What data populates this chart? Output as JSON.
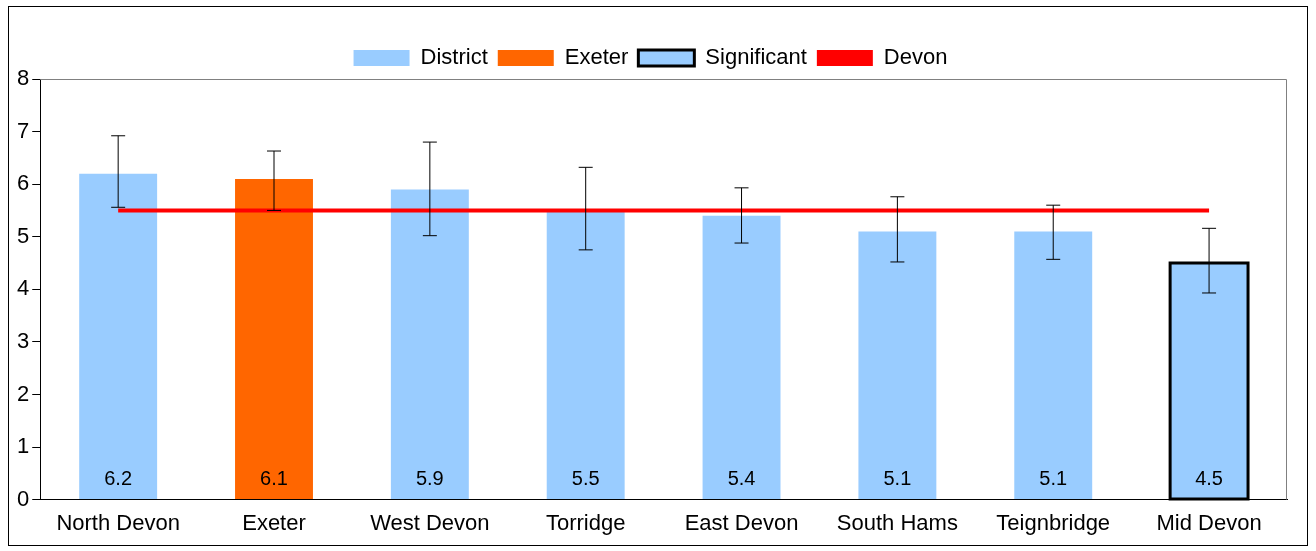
{
  "chart_data": {
    "type": "bar",
    "categories": [
      "North Devon",
      "Exeter",
      "West Devon",
      "Torridge",
      "East Devon",
      "South Hams",
      "Teignbridge",
      "Mid Devon"
    ],
    "series": [
      {
        "name": "District",
        "color": "#99ccff",
        "values": [
          6.2,
          null,
          5.9,
          5.5,
          5.4,
          5.1,
          5.1,
          null
        ],
        "value_labels": [
          "6.2",
          null,
          "5.9",
          "5.5",
          "5.4",
          "5.1",
          "5.1",
          null
        ],
        "errors": [
          [
            5.56,
            6.92
          ],
          null,
          [
            5.02,
            6.8
          ],
          [
            4.75,
            6.32
          ],
          [
            4.88,
            5.93
          ],
          [
            4.52,
            5.76
          ],
          [
            4.57,
            5.6
          ],
          null
        ]
      },
      {
        "name": "Exeter",
        "color": "#ff6600",
        "values": [
          null,
          6.1,
          null,
          null,
          null,
          null,
          null,
          null
        ],
        "value_labels": [
          null,
          "6.1",
          null,
          null,
          null,
          null,
          null,
          null
        ],
        "errors": [
          null,
          [
            5.5,
            6.63
          ],
          null,
          null,
          null,
          null,
          null,
          null
        ]
      },
      {
        "name": "Significant",
        "color": "#99ccff",
        "values": [
          null,
          null,
          null,
          null,
          null,
          null,
          null,
          4.5
        ],
        "value_labels": [
          null,
          null,
          null,
          null,
          null,
          null,
          null,
          "4.5"
        ],
        "errors": [
          null,
          null,
          null,
          null,
          null,
          null,
          null,
          [
            3.93,
            5.16
          ]
        ]
      },
      {
        "name": "Devon",
        "type": "line",
        "color": "#ff0000",
        "values": [
          5.5,
          5.5,
          5.5,
          5.5,
          5.5,
          5.5,
          5.5,
          5.5
        ]
      }
    ],
    "ylim": [
      0,
      8
    ],
    "yticks": [
      0,
      1,
      2,
      3,
      4,
      5,
      6,
      7,
      8
    ],
    "grid": false,
    "legend": "top",
    "marker": "none"
  }
}
